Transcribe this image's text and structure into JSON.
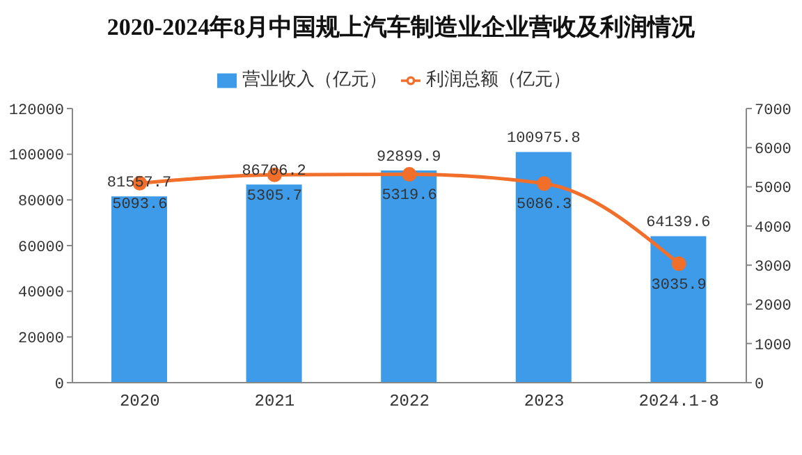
{
  "chart_data": {
    "type": "bar",
    "title": "2020-2024年8月中国规上汽车制造业企业营收及利润情况",
    "categories": [
      "2020",
      "2021",
      "2022",
      "2023",
      "2024.1-8"
    ],
    "series": [
      {
        "name": "营业收入（亿元）",
        "color": "#3d9be9",
        "values": [
          81557.7,
          86706.2,
          92899.9,
          100975.8,
          64139.6
        ]
      },
      {
        "name": "利润总额（亿元）",
        "type": "line",
        "axis": "y2",
        "color": "#f26f2b",
        "values": [
          5093.6,
          5305.7,
          5319.6,
          5086.3,
          3035.9
        ],
        "marker": "circle"
      }
    ],
    "ylim": [
      0,
      120000
    ],
    "yticks": [
      0,
      20000,
      40000,
      60000,
      80000,
      100000,
      120000
    ],
    "y2lim": [
      0,
      7000
    ],
    "y2ticks": [
      0,
      1000,
      2000,
      3000,
      4000,
      5000,
      6000,
      7000
    ],
    "grid": false,
    "legend": "top",
    "data_labels": true
  }
}
